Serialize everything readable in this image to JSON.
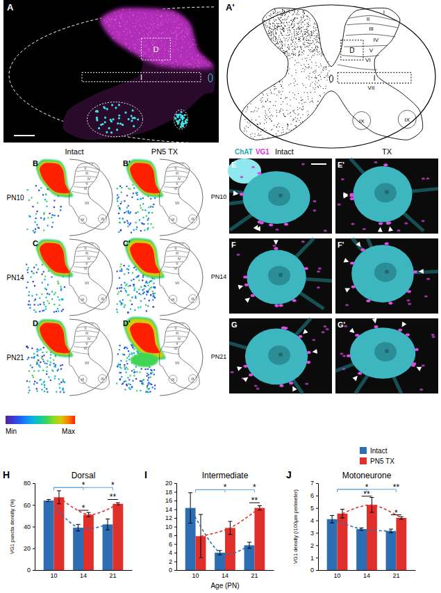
{
  "figure": {
    "panel_a": {
      "letter": "A",
      "boxes": [
        "D",
        "I"
      ]
    },
    "panel_a_prime": {
      "letter": "A'",
      "laminae": [
        "I",
        "II",
        "III",
        "IV",
        "V",
        "VI",
        "VII",
        "IX",
        "IX"
      ],
      "boxes": [
        "D",
        "I"
      ]
    },
    "heatmaps": {
      "columns": [
        "Intact",
        "PN5 TX"
      ],
      "rows": [
        "PN10",
        "PN14",
        "PN21"
      ],
      "letters": [
        [
          "B",
          "B'"
        ],
        [
          "C",
          "C'"
        ],
        [
          "D",
          "D'"
        ]
      ],
      "laminae": [
        "I",
        "II",
        "III",
        "IV",
        "V",
        "VI",
        "VII",
        "IX",
        "IX"
      ],
      "colorbar": {
        "min": "Min",
        "max": "Max"
      }
    },
    "micrographs": {
      "stains": [
        {
          "text": "ChAT",
          "color": "#27a9b6"
        },
        {
          "text": "VG1",
          "color": "#d633d6"
        }
      ],
      "columns": [
        "Intact",
        "TX"
      ],
      "rows": [
        "PN10",
        "PN14",
        "PN21"
      ],
      "letters": [
        [
          "E",
          "E'"
        ],
        [
          "F",
          "F'"
        ],
        [
          "G",
          "G'"
        ]
      ]
    }
  },
  "chart_data": [
    {
      "type": "bar",
      "panel_label": "H",
      "title": "Dorsal",
      "ylabel": "VG1 puncta density (%)",
      "categories": [
        "10",
        "14",
        "21"
      ],
      "series": [
        {
          "color": "#2d6db4",
          "line_style": "dashed",
          "values": [
            64,
            39,
            42
          ],
          "errors": [
            1,
            3,
            5
          ]
        },
        {
          "color": "#e0302b",
          "line_style": "dashed",
          "values": [
            67,
            51,
            61
          ],
          "errors": [
            6,
            2,
            1
          ]
        }
      ],
      "ylim": [
        0,
        80
      ],
      "yticks": [
        0,
        20,
        40,
        60,
        80
      ],
      "significance": [
        {
          "categories": [
            "10",
            "14"
          ],
          "label": "*",
          "y": 76,
          "color": "#5ba3e0"
        },
        {
          "categories": [
            "10",
            "21"
          ],
          "label": "*",
          "y": 76,
          "color": "#5ba3e0"
        },
        {
          "categories": [
            "14"
          ],
          "label": "*",
          "y": 55
        },
        {
          "categories": [
            "21"
          ],
          "label": "**",
          "y": 65
        }
      ]
    },
    {
      "type": "bar",
      "panel_label": "I",
      "title": "Intermediate",
      "xlabel": "Age (PN)",
      "categories": [
        "10",
        "14",
        "21"
      ],
      "series": [
        {
          "color": "#2d6db4",
          "line_style": "dashed",
          "values": [
            14.3,
            4,
            5.7
          ],
          "errors": [
            3.5,
            0.5,
            0.7
          ]
        },
        {
          "color": "#e0302b",
          "line_style": "dashed",
          "values": [
            7.8,
            9.7,
            14.3
          ],
          "errors": [
            5,
            1.5,
            0.5
          ]
        }
      ],
      "ylim": [
        0,
        20
      ],
      "yticks": [
        0,
        2,
        4,
        6,
        8,
        10,
        12,
        14,
        16,
        18,
        20
      ],
      "significance": [
        {
          "categories": [
            "10",
            "14"
          ],
          "label": "*",
          "y": 18.5,
          "color": "#5ba3e0"
        },
        {
          "categories": [
            "10",
            "21"
          ],
          "label": "*",
          "y": 18.5,
          "color": "#5ba3e0"
        },
        {
          "categories": [
            "21"
          ],
          "label": "**",
          "y": 15.5
        }
      ]
    },
    {
      "type": "bar",
      "panel_label": "J",
      "title": "Motoneurone",
      "ylabel": "VG1 density (/100μm perimeter)",
      "categories": [
        "10",
        "14",
        "21"
      ],
      "legend": "top-right",
      "series": [
        {
          "name": "Intact",
          "color": "#2d6db4",
          "line_style": "dashed",
          "values": [
            4.1,
            3.3,
            3.15
          ],
          "errors": [
            0.3,
            0.1,
            0.15
          ]
        },
        {
          "name": "PN5 TX",
          "color": "#e0302b",
          "line_style": "dashed",
          "values": [
            4.55,
            5.25,
            4.2
          ],
          "errors": [
            0.35,
            0.6,
            0.1
          ]
        }
      ],
      "ylim": [
        0,
        7
      ],
      "yticks": [
        0,
        1,
        2,
        3,
        4,
        5,
        6,
        7
      ],
      "significance": [
        {
          "categories": [
            "10",
            "14"
          ],
          "label": "*",
          "y": 6.5,
          "color": "#5ba3e0"
        },
        {
          "categories": [
            "10",
            "21"
          ],
          "label": "**",
          "y": 6.5,
          "color": "#5ba3e0"
        },
        {
          "categories": [
            "14"
          ],
          "label": "**",
          "y": 5.95
        },
        {
          "categories": [
            "21"
          ],
          "label": "*",
          "y": 4.45
        }
      ]
    }
  ]
}
